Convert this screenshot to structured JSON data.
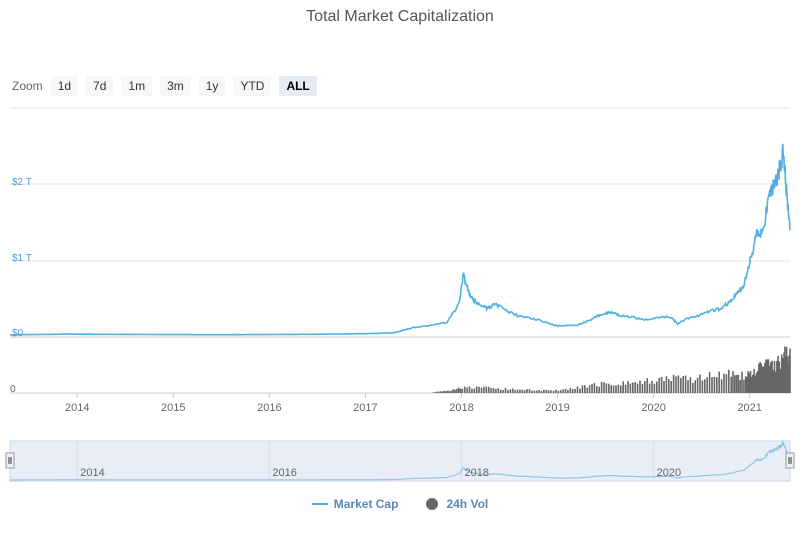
{
  "title": "Total Market Capitalization",
  "zoom": {
    "label": "Zoom",
    "buttons": [
      "1d",
      "7d",
      "1m",
      "3m",
      "1y",
      "YTD",
      "ALL"
    ],
    "active": "ALL"
  },
  "legend": {
    "market_cap": "Market Cap",
    "volume": "24h Vol"
  },
  "colors": {
    "market_cap": "#4fb0e0",
    "volume": "#666666",
    "navigator_fill": "#ccd6eb"
  },
  "chart_data": {
    "type": "line",
    "title": "Total Market Capitalization",
    "x_ticks": [
      "2014",
      "2015",
      "2016",
      "2017",
      "2018",
      "2019",
      "2020",
      "2021"
    ],
    "y_ticks": [
      "$0",
      "$1 T",
      "$2 T"
    ],
    "ylim": [
      0,
      2.5
    ],
    "y_unit": "trillion USD",
    "volume_axis_tick": "0",
    "navigator_ticks": [
      "2014",
      "2016",
      "2018",
      "2020"
    ],
    "grid": true,
    "legend_position": "bottom-center",
    "series": [
      {
        "name": "Market Cap",
        "x": [
          2013.3,
          2013.9,
          2014.2,
          2014.6,
          2015.0,
          2015.5,
          2016.0,
          2016.5,
          2017.0,
          2017.3,
          2017.5,
          2017.7,
          2017.85,
          2017.97,
          2018.02,
          2018.08,
          2018.13,
          2018.2,
          2018.27,
          2018.35,
          2018.45,
          2018.6,
          2018.75,
          2018.9,
          2019.0,
          2019.2,
          2019.35,
          2019.45,
          2019.55,
          2019.65,
          2019.8,
          2019.95,
          2020.1,
          2020.2,
          2020.25,
          2020.35,
          2020.5,
          2020.6,
          2020.7,
          2020.8,
          2020.87,
          2020.95,
          2021.02,
          2021.08,
          2021.13,
          2021.2,
          2021.25,
          2021.3,
          2021.35,
          2021.38,
          2021.42
        ],
        "values": [
          0.002,
          0.012,
          0.01,
          0.008,
          0.005,
          0.004,
          0.006,
          0.01,
          0.018,
          0.03,
          0.1,
          0.13,
          0.17,
          0.4,
          0.8,
          0.55,
          0.45,
          0.4,
          0.35,
          0.42,
          0.33,
          0.25,
          0.22,
          0.16,
          0.12,
          0.13,
          0.2,
          0.28,
          0.3,
          0.26,
          0.23,
          0.2,
          0.25,
          0.22,
          0.15,
          0.22,
          0.27,
          0.32,
          0.35,
          0.45,
          0.55,
          0.7,
          1.05,
          1.4,
          1.35,
          1.8,
          2.0,
          2.15,
          2.45,
          1.95,
          1.4
        ]
      },
      {
        "name": "24h Vol",
        "type": "column",
        "x": [
          2017.7,
          2017.85,
          2018.0,
          2018.2,
          2018.4,
          2018.6,
          2018.8,
          2019.0,
          2019.2,
          2019.4,
          2019.6,
          2019.8,
          2020.0,
          2020.2,
          2020.4,
          2020.6,
          2020.8,
          2020.95,
          2021.05,
          2021.15,
          2021.25,
          2021.35,
          2021.42
        ],
        "values": [
          0.02,
          0.05,
          0.12,
          0.13,
          0.1,
          0.08,
          0.07,
          0.06,
          0.12,
          0.2,
          0.25,
          0.22,
          0.3,
          0.35,
          0.3,
          0.4,
          0.45,
          0.4,
          0.55,
          0.65,
          0.6,
          0.85,
          0.95
        ]
      }
    ]
  }
}
